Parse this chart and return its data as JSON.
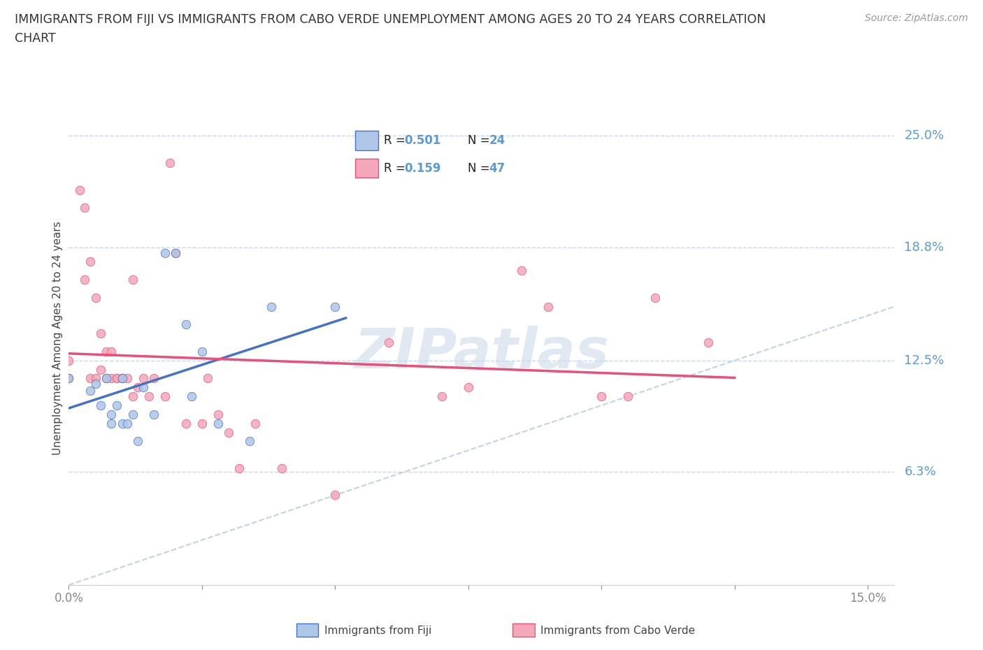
{
  "title_line1": "IMMIGRANTS FROM FIJI VS IMMIGRANTS FROM CABO VERDE UNEMPLOYMENT AMONG AGES 20 TO 24 YEARS CORRELATION",
  "title_line2": "CHART",
  "source": "Source: ZipAtlas.com",
  "ylabel": "Unemployment Among Ages 20 to 24 years",
  "xlim": [
    0.0,
    0.155
  ],
  "ylim": [
    0.0,
    0.275
  ],
  "yticks": [
    0.063,
    0.125,
    0.188,
    0.25
  ],
  "ytick_labels": [
    "6.3%",
    "12.5%",
    "18.8%",
    "25.0%"
  ],
  "fiji_color_face": "#aec6e8",
  "fiji_color_edge": "#4472c4",
  "cabo_color_face": "#f4a7b9",
  "cabo_color_edge": "#e8507a",
  "trend_fiji_color": "#4472c4",
  "trend_cabo_color": "#e8507a",
  "ref_line_color": "#b8cfe0",
  "R_fiji": "0.501",
  "N_fiji": "24",
  "R_cabo": "0.159",
  "N_cabo": "47",
  "fiji_x": [
    0.0,
    0.004,
    0.005,
    0.006,
    0.007,
    0.008,
    0.008,
    0.009,
    0.01,
    0.01,
    0.011,
    0.012,
    0.013,
    0.014,
    0.016,
    0.018,
    0.02,
    0.022,
    0.023,
    0.025,
    0.028,
    0.034,
    0.038,
    0.05
  ],
  "fiji_y": [
    0.115,
    0.108,
    0.112,
    0.1,
    0.115,
    0.095,
    0.09,
    0.1,
    0.09,
    0.115,
    0.09,
    0.095,
    0.08,
    0.11,
    0.095,
    0.185,
    0.185,
    0.145,
    0.105,
    0.13,
    0.09,
    0.08,
    0.155,
    0.155
  ],
  "cabo_x": [
    0.0,
    0.0,
    0.002,
    0.003,
    0.003,
    0.004,
    0.004,
    0.005,
    0.005,
    0.006,
    0.006,
    0.007,
    0.007,
    0.008,
    0.008,
    0.009,
    0.009,
    0.01,
    0.01,
    0.011,
    0.012,
    0.012,
    0.013,
    0.014,
    0.015,
    0.016,
    0.018,
    0.019,
    0.02,
    0.022,
    0.025,
    0.026,
    0.028,
    0.03,
    0.032,
    0.035,
    0.04,
    0.05,
    0.06,
    0.07,
    0.075,
    0.085,
    0.09,
    0.1,
    0.105,
    0.11,
    0.12
  ],
  "cabo_y": [
    0.115,
    0.125,
    0.22,
    0.17,
    0.21,
    0.115,
    0.18,
    0.115,
    0.16,
    0.12,
    0.14,
    0.115,
    0.13,
    0.115,
    0.13,
    0.115,
    0.115,
    0.115,
    0.115,
    0.115,
    0.105,
    0.17,
    0.11,
    0.115,
    0.105,
    0.115,
    0.105,
    0.235,
    0.185,
    0.09,
    0.09,
    0.115,
    0.095,
    0.085,
    0.065,
    0.09,
    0.065,
    0.05,
    0.135,
    0.105,
    0.11,
    0.175,
    0.155,
    0.105,
    0.105,
    0.16,
    0.135
  ],
  "watermark": "ZIPatlas",
  "background_color": "#ffffff",
  "grid_color": "#c8d8e8",
  "right_label_color": "#5b9bd5",
  "legend_color": "#5b9bd5"
}
